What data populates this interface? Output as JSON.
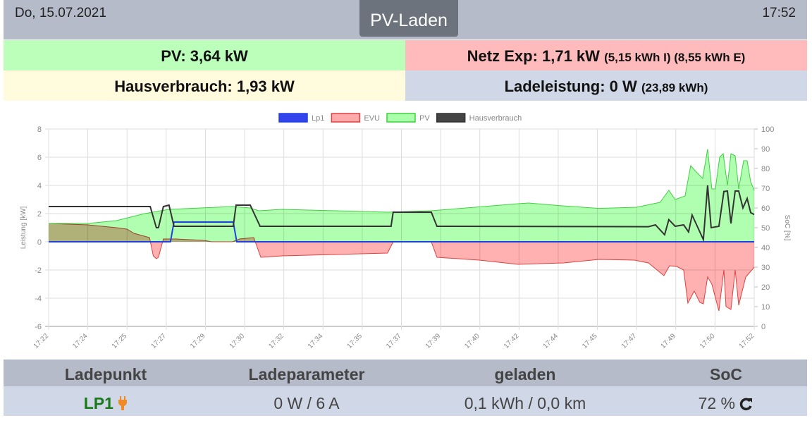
{
  "header": {
    "date": "Do, 15.07.2021",
    "title": "PV-Laden",
    "time": "17:52"
  },
  "summary": {
    "pv": "PV: 3,64 kW",
    "netz": "Netz Exp: 1,71 kW",
    "netz_detail": "(5,15 kWh I) (8,55 kWh E)",
    "haus": "Hausverbrauch: 1,93 kW",
    "lade": "Ladeleistung: 0 W",
    "lade_detail": "(23,89 kWh)"
  },
  "colors": {
    "pv_bg": "#bbffbb",
    "netz_bg": "#ffbbbb",
    "haus_bg": "#fffbdc",
    "lade_bg": "#d0d7e6",
    "header_bg": "#b5bbc9",
    "lp1_green": "#1a7a1a",
    "plug_orange": "#f08a24"
  },
  "chart_data": {
    "type": "area",
    "legend": [
      "Lp1",
      "EVU",
      "PV",
      "Hausverbrauch"
    ],
    "legend_position": "top",
    "ylabel": "Leistung [kW]",
    "y2label": "SoC [%]",
    "ylim": [
      -6,
      8
    ],
    "y2lim": [
      0,
      100
    ],
    "yticks": [
      8,
      6,
      4,
      2,
      0,
      -2,
      -4,
      -6
    ],
    "y2ticks": [
      100,
      90,
      80,
      70,
      60,
      50,
      40,
      30,
      20,
      10,
      0
    ],
    "xlim": [
      0,
      30
    ],
    "xtick_labels": [
      "17:22",
      "17:24",
      "17:25",
      "17:27",
      "17:29",
      "17:30",
      "17:32",
      "17:34",
      "17:35",
      "17:37",
      "17:39",
      "17:40",
      "17:42",
      "17:44",
      "17:45",
      "17:47",
      "17:49",
      "17:50",
      "17:52"
    ],
    "x_unit": "minutes since 17:22",
    "series": [
      {
        "name": "Lp1",
        "color": "#2040e0",
        "points": [
          [
            0,
            0
          ],
          [
            5.18,
            0
          ],
          [
            5.33,
            1.4
          ],
          [
            7.85,
            1.4
          ],
          [
            8.0,
            0
          ],
          [
            30,
            0
          ]
        ]
      },
      {
        "name": "EVU",
        "color": "#e04040",
        "points": [
          [
            0,
            1.3
          ],
          [
            1.68,
            1.2
          ],
          [
            2.88,
            1.0
          ],
          [
            3.33,
            0.9
          ],
          [
            3.63,
            0.6
          ],
          [
            4.29,
            0.3
          ],
          [
            4.45,
            -1.0
          ],
          [
            4.58,
            -1.2
          ],
          [
            4.67,
            -1.1
          ],
          [
            4.88,
            0.2
          ],
          [
            5.42,
            0.2
          ],
          [
            6.62,
            0.1
          ],
          [
            6.92,
            0.0
          ],
          [
            7.82,
            0.0
          ],
          [
            8.12,
            0.2
          ],
          [
            8.72,
            0.3
          ],
          [
            9.02,
            -1.1
          ],
          [
            9.92,
            -1.0
          ],
          [
            14.41,
            -0.8
          ],
          [
            14.65,
            0
          ],
          [
            16.27,
            0
          ],
          [
            16.51,
            -1.1
          ],
          [
            18.31,
            -1.3
          ],
          [
            19.96,
            -1.6
          ],
          [
            21.9,
            -1.5
          ],
          [
            23.4,
            -1.25
          ],
          [
            24.9,
            -1.3
          ],
          [
            25.5,
            -1.5
          ],
          [
            26.16,
            -2.4
          ],
          [
            26.4,
            -1.7
          ],
          [
            26.7,
            -1.75
          ],
          [
            27.0,
            -2.0
          ],
          [
            27.18,
            -4.35
          ],
          [
            27.45,
            -3.5
          ],
          [
            27.69,
            -4.3
          ],
          [
            27.84,
            -4.4
          ],
          [
            28.02,
            -2.5
          ],
          [
            28.2,
            -3.0
          ],
          [
            28.5,
            -4.9
          ],
          [
            28.71,
            -2.0
          ],
          [
            28.8,
            -4.6
          ],
          [
            29.01,
            -4.8
          ],
          [
            29.19,
            -2.0
          ],
          [
            29.34,
            -4.5
          ],
          [
            29.64,
            -2.5
          ],
          [
            30,
            -1.8
          ]
        ]
      },
      {
        "name": "PV",
        "color": "#40d040",
        "points": [
          [
            0,
            1.3
          ],
          [
            1.68,
            1.3
          ],
          [
            2.88,
            1.5
          ],
          [
            4.08,
            2.0
          ],
          [
            5.12,
            2.3
          ],
          [
            7.82,
            2.5
          ],
          [
            8.57,
            2.4
          ],
          [
            8.93,
            2.2
          ],
          [
            9.92,
            2.3
          ],
          [
            14.41,
            2.1
          ],
          [
            16.27,
            2.2
          ],
          [
            19.96,
            2.7
          ],
          [
            20.41,
            2.75
          ],
          [
            21.7,
            2.57
          ],
          [
            23.4,
            2.37
          ],
          [
            25.0,
            2.45
          ],
          [
            26.0,
            2.8
          ],
          [
            26.37,
            3.65
          ],
          [
            26.64,
            3.0
          ],
          [
            27.06,
            3.25
          ],
          [
            27.3,
            5.4
          ],
          [
            27.51,
            5.0
          ],
          [
            27.81,
            4.5
          ],
          [
            28.02,
            6.57
          ],
          [
            28.2,
            3.75
          ],
          [
            28.35,
            3.75
          ],
          [
            28.53,
            6.0
          ],
          [
            28.68,
            6.25
          ],
          [
            28.86,
            4.0
          ],
          [
            29.01,
            6.25
          ],
          [
            29.19,
            6.1
          ],
          [
            29.34,
            3.75
          ],
          [
            29.55,
            5.75
          ],
          [
            29.7,
            5.75
          ],
          [
            29.85,
            4.25
          ],
          [
            30,
            3.65
          ]
        ]
      },
      {
        "name": "Hausverbrauch",
        "color": "#333333",
        "points": [
          [
            0,
            2.5
          ],
          [
            4.32,
            2.5
          ],
          [
            4.58,
            1.0
          ],
          [
            4.67,
            1.0
          ],
          [
            4.88,
            2.5
          ],
          [
            5.12,
            2.6
          ],
          [
            5.33,
            1.1
          ],
          [
            7.85,
            1.1
          ],
          [
            7.97,
            2.6
          ],
          [
            8.57,
            2.6
          ],
          [
            8.99,
            1.1
          ],
          [
            14.56,
            1.1
          ],
          [
            14.65,
            2.1
          ],
          [
            16.27,
            2.1
          ],
          [
            16.51,
            1.1
          ],
          [
            25.5,
            1.07
          ],
          [
            25.8,
            1.2
          ],
          [
            26.19,
            0.5
          ],
          [
            26.37,
            1.57
          ],
          [
            26.64,
            1.1
          ],
          [
            27.0,
            1.2
          ],
          [
            27.21,
            0.7
          ],
          [
            27.36,
            1.9
          ],
          [
            27.84,
            0.15
          ],
          [
            28.02,
            4.0
          ],
          [
            28.17,
            1.0
          ],
          [
            28.5,
            1.1
          ],
          [
            28.71,
            3.57
          ],
          [
            28.86,
            3.6
          ],
          [
            29.01,
            1.3
          ],
          [
            29.19,
            3.6
          ],
          [
            29.34,
            3.6
          ],
          [
            29.52,
            2.4
          ],
          [
            29.7,
            3.07
          ],
          [
            29.85,
            2.07
          ],
          [
            30,
            1.93
          ]
        ]
      }
    ]
  },
  "footer": {
    "headers": [
      "Ladepunkt",
      "Ladeparameter",
      "geladen",
      "SoC"
    ],
    "lp_name": "LP1",
    "params": "0 W / 6 A",
    "charged": "0,1 kWh / 0,0 km",
    "soc": "72 %"
  }
}
